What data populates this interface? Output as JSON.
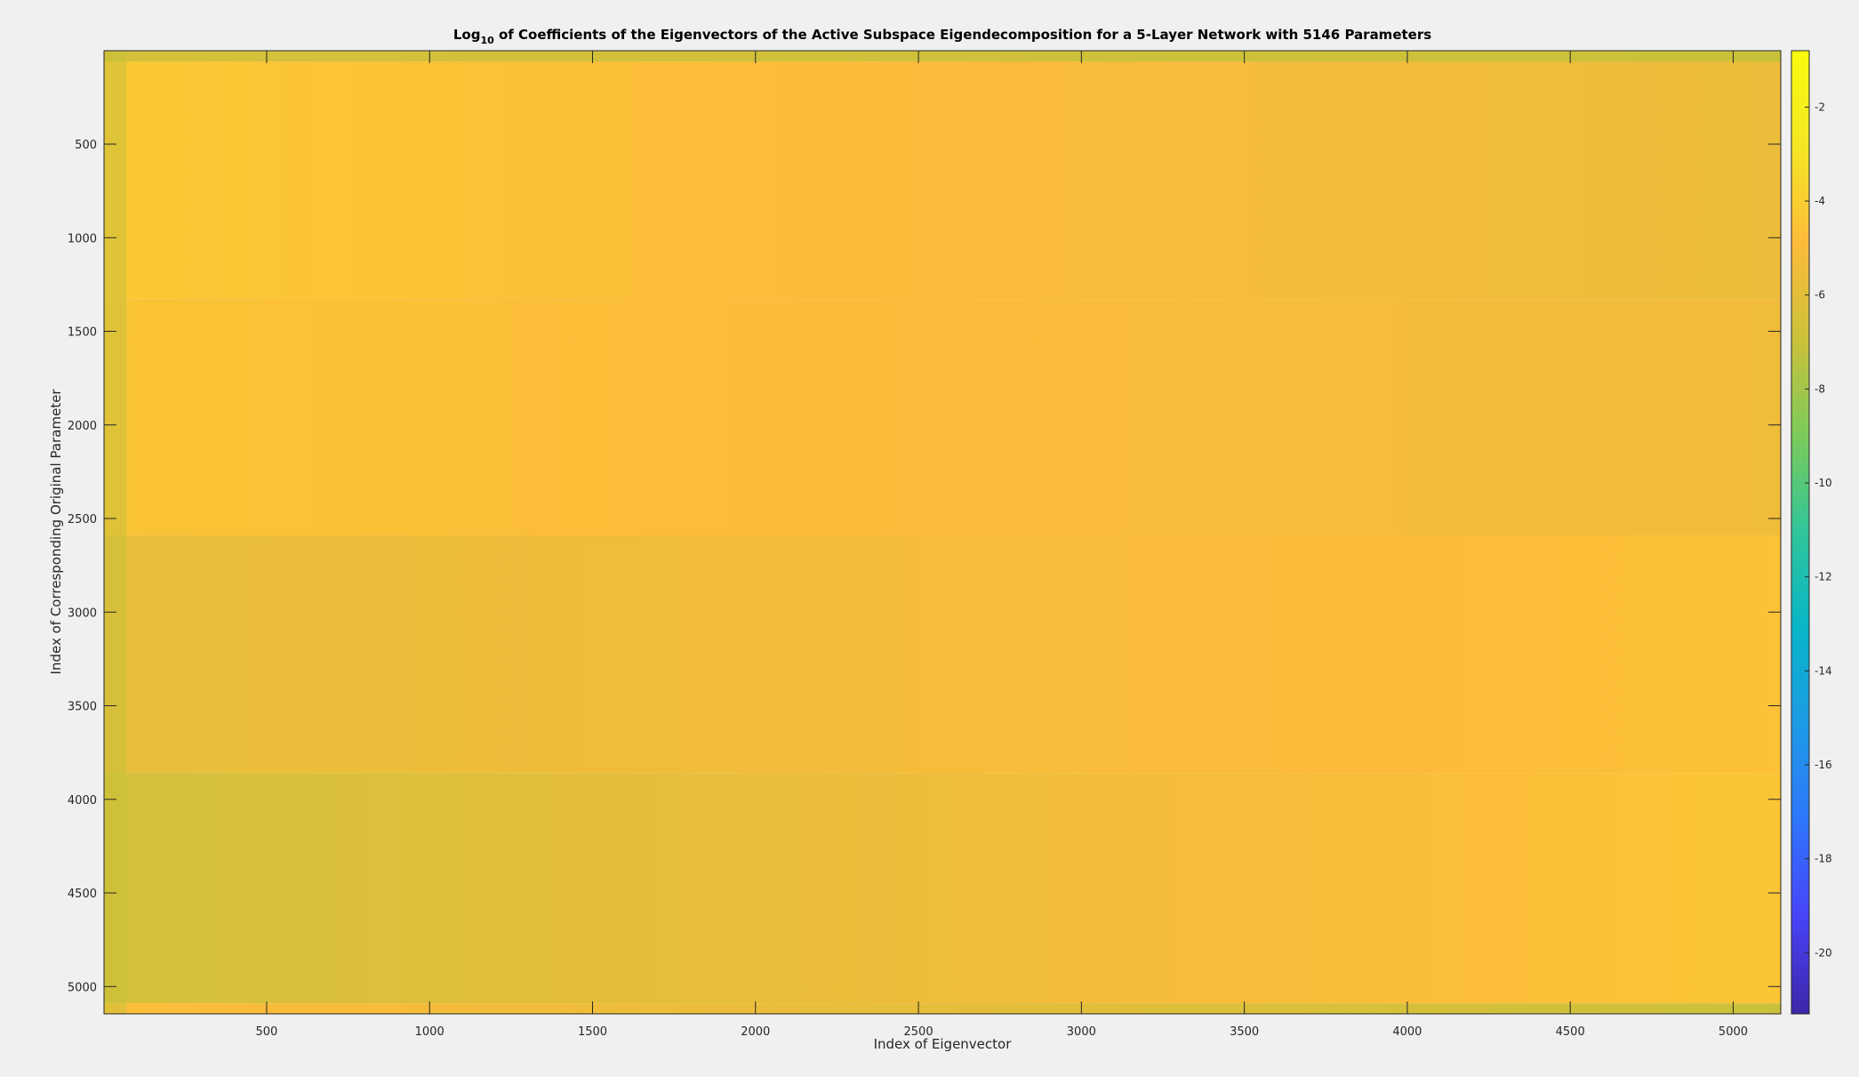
{
  "chart_data": {
    "type": "heatmap",
    "title": {
      "prefix": "Log",
      "subscript": "10",
      "suffix": " of Coefficients of the Eigenvectors of the Active Subspace Eigendecomposition for a 5-Layer Network with 5146 Parameters"
    },
    "xlabel": "Index of Eigenvector",
    "ylabel": "Index of Corresponding Original Parameter",
    "xlim": [
      1,
      5146
    ],
    "ylim": [
      1,
      5146
    ],
    "y_direction": "reversed",
    "x_ticks": [
      500,
      1000,
      1500,
      2000,
      2500,
      3000,
      3500,
      4000,
      4500,
      5000
    ],
    "x_tick_labels": [
      "500",
      "1000",
      "1500",
      "2000",
      "2500",
      "3000",
      "3500",
      "4000",
      "4500",
      "5000"
    ],
    "y_ticks": [
      500,
      1000,
      1500,
      2000,
      2500,
      3000,
      3500,
      4000,
      4500,
      5000
    ],
    "y_tick_labels": [
      "500",
      "1000",
      "1500",
      "2000",
      "2500",
      "3000",
      "3500",
      "4000",
      "4500",
      "5000"
    ],
    "colorbar": {
      "colormap": "parula",
      "clim": [
        -21.3,
        -0.8
      ],
      "ticks": [
        -2,
        -4,
        -6,
        -8,
        -10,
        -12,
        -14,
        -16,
        -18,
        -20
      ],
      "tick_labels": [
        "-2",
        "-4",
        "-6",
        "-8",
        "-10",
        "-12",
        "-14",
        "-16",
        "-18",
        "-20"
      ],
      "colors": [
        "#3e26a8",
        "#4743f7",
        "#2f76fb",
        "#1d9ae6",
        "#08b5c8",
        "#30c59a",
        "#7ccb5a",
        "#cbc13a",
        "#fdbb3a",
        "#f5e625",
        "#f9fb0e"
      ]
    },
    "row_bands": [
      {
        "y_start": 1,
        "y_end": 60,
        "level": -6.3
      },
      {
        "y_start": 60,
        "y_end": 1330,
        "level": -4.6
      },
      {
        "y_start": 1330,
        "y_end": 2590,
        "level": -4.8
      },
      {
        "y_start": 2590,
        "y_end": 3860,
        "level": -5.2
      },
      {
        "y_start": 3860,
        "y_end": 5090,
        "level": -5.5
      },
      {
        "y_start": 5090,
        "y_end": 5146,
        "level": -6.3
      }
    ],
    "trend": {
      "description_values": "mean log10 coefficient per band at eigenvector index 1 (left) and 5146 (right)",
      "band_left_right": [
        [
          -6.5,
          -7.0
        ],
        [
          -4.3,
          -5.6
        ],
        [
          -4.5,
          -5.4
        ],
        [
          -5.8,
          -4.6
        ],
        [
          -6.6,
          -4.4
        ],
        [
          -4.8,
          -7.0
        ]
      ]
    },
    "grid": false,
    "legend": "none"
  }
}
